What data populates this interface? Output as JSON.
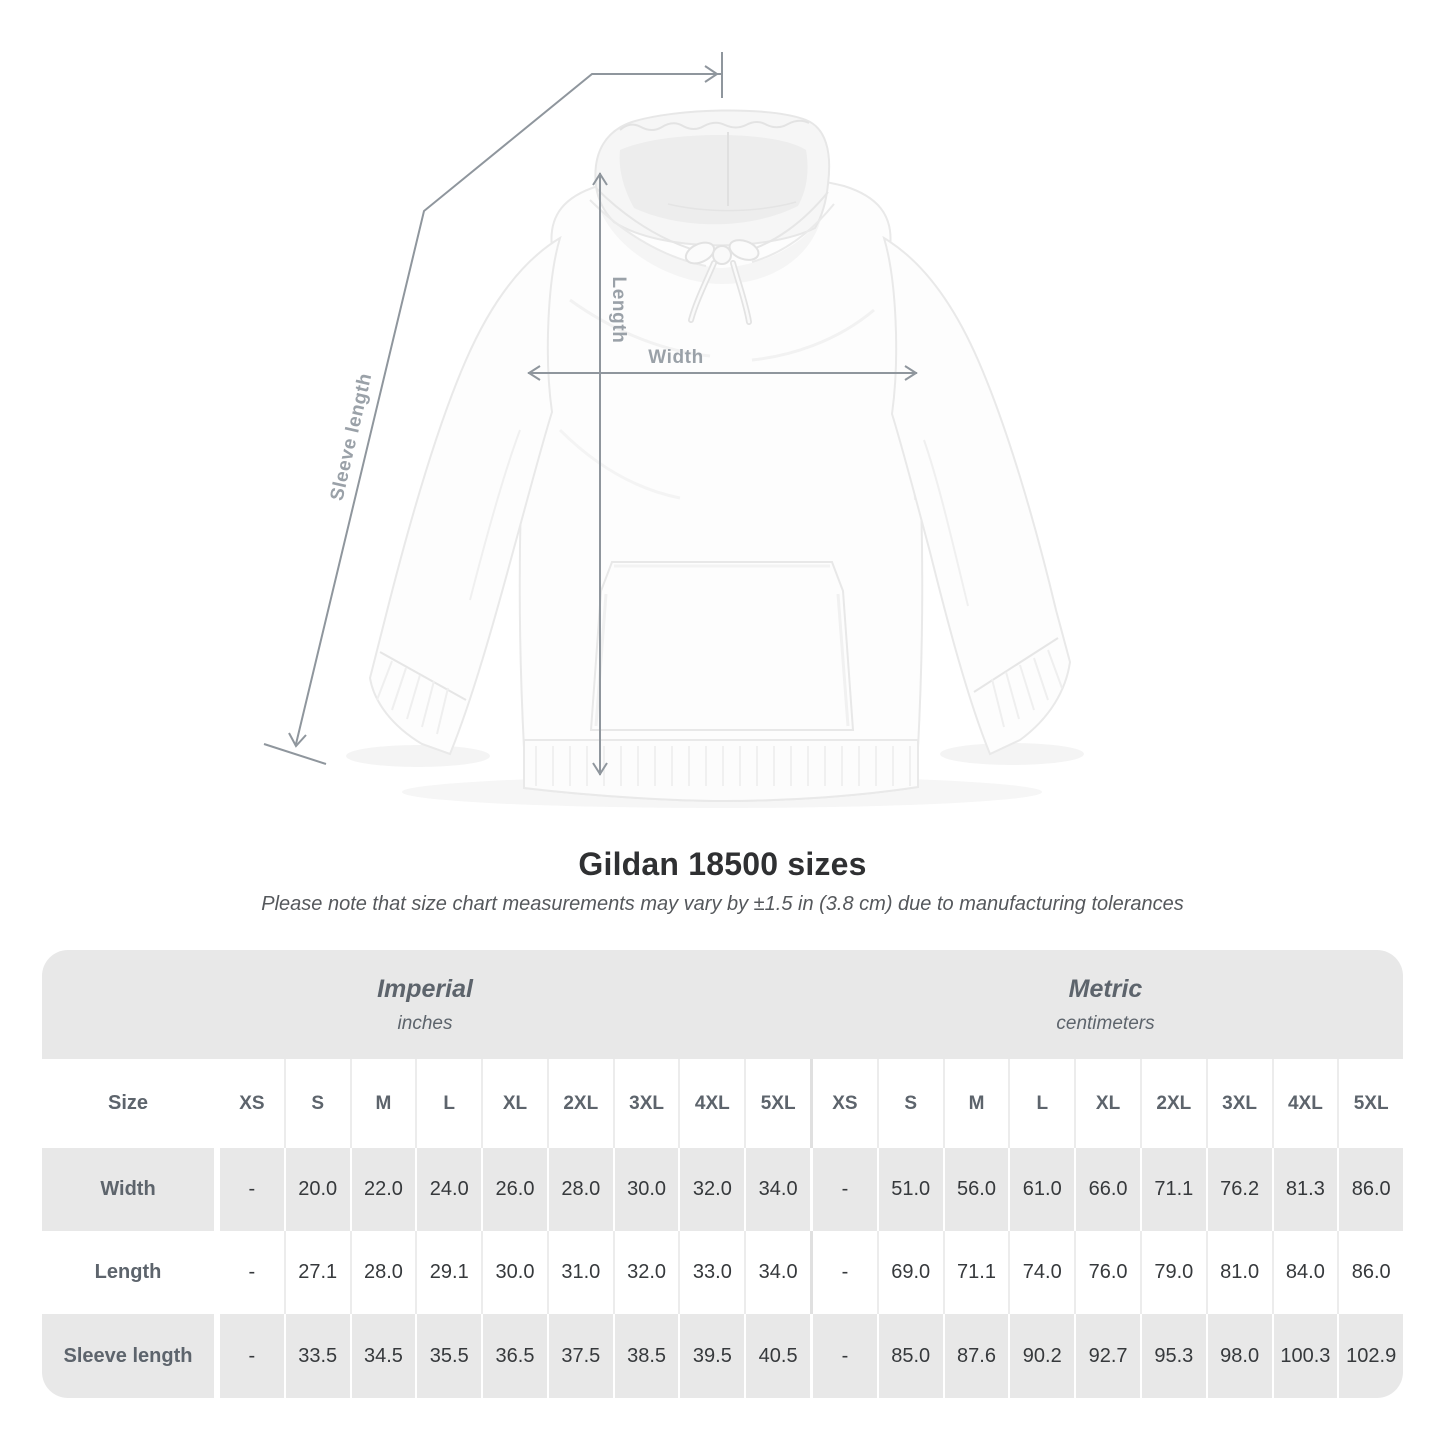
{
  "page": {
    "background": "#ffffff"
  },
  "diagram": {
    "garment": "white pullover hoodie, front view",
    "measurement_labels": {
      "length": "Length",
      "width": "Width",
      "sleeve_length": "Sleeve length"
    },
    "line_color": "#8f969d",
    "label_color": "#9aa1a8"
  },
  "heading": {
    "title": "Gildan 18500 sizes",
    "note": "Please note that size chart measurements may vary by ±1.5 in (3.8 cm) due to manufacturing tolerances"
  },
  "chart_data": {
    "type": "table",
    "title": "Gildan 18500 sizes",
    "note": "Please note that size chart measurements may vary by ±1.5 in (3.8 cm) due to manufacturing tolerances",
    "row_header": "Size",
    "sizes": [
      "XS",
      "S",
      "M",
      "L",
      "XL",
      "2XL",
      "3XL",
      "4XL",
      "5XL"
    ],
    "column_groups": [
      {
        "label": "Imperial",
        "unit": "inches"
      },
      {
        "label": "Metric",
        "unit": "centimeters"
      }
    ],
    "rows": [
      {
        "label": "Width",
        "imperial": [
          "-",
          "20.0",
          "22.0",
          "24.0",
          "26.0",
          "28.0",
          "30.0",
          "32.0",
          "34.0"
        ],
        "metric": [
          "-",
          "51.0",
          "56.0",
          "61.0",
          "66.0",
          "71.1",
          "76.2",
          "81.3",
          "86.0"
        ]
      },
      {
        "label": "Length",
        "imperial": [
          "-",
          "27.1",
          "28.0",
          "29.1",
          "30.0",
          "31.0",
          "32.0",
          "33.0",
          "34.0"
        ],
        "metric": [
          "-",
          "69.0",
          "71.1",
          "74.0",
          "76.0",
          "79.0",
          "81.0",
          "84.0",
          "86.0"
        ]
      },
      {
        "label": "Sleeve length",
        "imperial": [
          "-",
          "33.5",
          "34.5",
          "35.5",
          "36.5",
          "37.5",
          "38.5",
          "39.5",
          "40.5"
        ],
        "metric": [
          "-",
          "85.0",
          "87.6",
          "90.2",
          "92.7",
          "95.3",
          "98.0",
          "100.3",
          "102.9"
        ]
      }
    ],
    "colors": {
      "band_bg": "#e8e8e8",
      "row_alt_bg": "#e8e8e8",
      "header_text": "#5d646c",
      "value_text": "#36393c"
    }
  }
}
